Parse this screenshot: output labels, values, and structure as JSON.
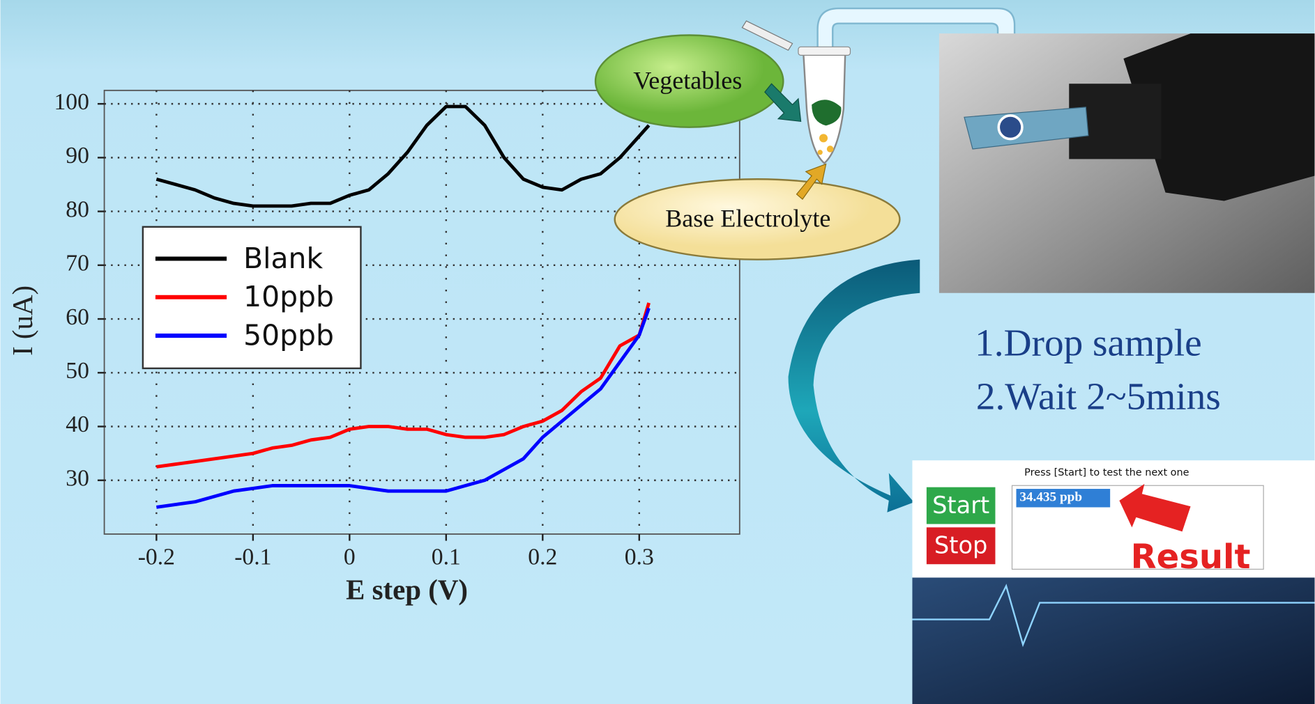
{
  "chart_data": {
    "type": "line",
    "xlabel": "E step (V)",
    "ylabel": "I (uA)",
    "x": [
      -0.2,
      -0.18,
      -0.16,
      -0.14,
      -0.12,
      -0.1,
      -0.08,
      -0.06,
      -0.04,
      -0.02,
      0,
      0.02,
      0.04,
      0.06,
      0.08,
      0.1,
      0.12,
      0.14,
      0.16,
      0.18,
      0.2,
      0.22,
      0.24,
      0.26,
      0.28,
      0.3,
      0.31
    ],
    "series": [
      {
        "name": "Blank",
        "color": "#000000",
        "values": [
          86,
          85,
          84,
          82.5,
          81.5,
          81,
          81,
          81,
          81.5,
          81.5,
          83,
          84,
          87,
          91,
          96,
          99.5,
          99.5,
          96,
          90,
          86,
          84.5,
          84,
          86,
          87,
          90,
          94,
          96
        ]
      },
      {
        "name": "10ppb",
        "color": "#ff0000",
        "values": [
          32.5,
          33,
          33.5,
          34,
          34.5,
          35,
          36,
          36.5,
          37.5,
          38,
          39.5,
          40,
          40,
          39.5,
          39.5,
          38.5,
          38,
          38,
          38.5,
          40,
          41,
          43,
          46.5,
          49,
          55,
          57,
          63
        ]
      },
      {
        "name": "50ppb",
        "color": "#0000ff",
        "values": [
          25,
          25.5,
          26,
          27,
          28,
          28.5,
          29,
          29,
          29,
          29,
          29,
          28.5,
          28,
          28,
          28,
          28,
          29,
          30,
          32,
          34,
          38,
          41,
          44,
          47,
          52,
          57,
          62
        ]
      }
    ],
    "xlim": [
      -0.254,
      0.404
    ],
    "xticks": [
      -0.2,
      -0.1,
      0,
      0.1,
      0.2,
      0.3
    ],
    "ylim": [
      20,
      102.5
    ],
    "yticks": [
      30,
      40,
      50,
      60,
      70,
      80,
      90,
      100
    ],
    "grid": true,
    "legend": "upper left"
  },
  "diagram": {
    "vegetables": "Vegetables",
    "electrolyte": "Base Electrolyte",
    "steps": [
      "1.Drop sample",
      "2.Wait 2~5mins"
    ],
    "screen": {
      "instruction": "Press [Start] to test the next one",
      "start": "Start",
      "stop": "Stop",
      "reading": "34.435 ppb",
      "result": "Result"
    }
  }
}
